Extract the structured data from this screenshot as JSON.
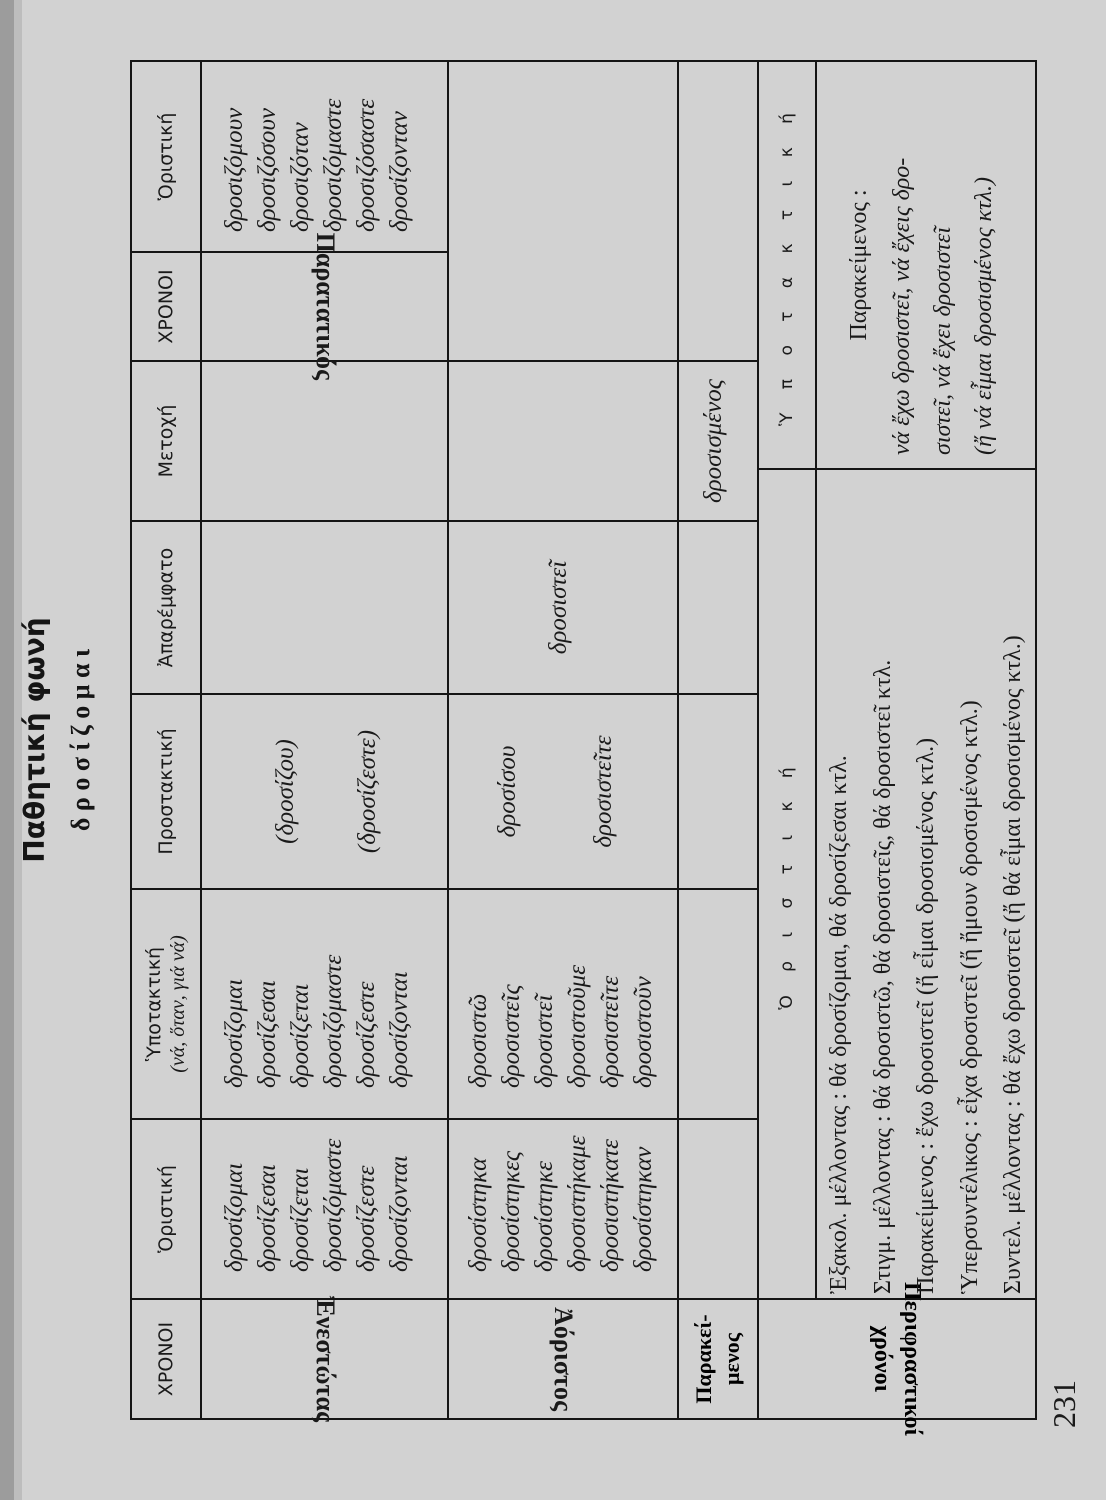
{
  "title": "Παθητική φωνή",
  "verb": "δ ρ ο σ ί ζ ο μ α ι",
  "page_number": "231",
  "headers": {
    "tenses": "ΧΡΟΝΟΙ",
    "indicative": "Ὁριστική",
    "subjunctive": "Ὑποτακτική",
    "subjunctive_note": "(νά, ὅταν, γιά νά)",
    "imperative": "Προστακτική",
    "infinitive": "Ἀπαρέμφατο",
    "participle": "Μετοχή",
    "tenses2": "ΧΡΟΝΟΙ",
    "indicative2": "Ὁριστική"
  },
  "present": {
    "label": "Ἐνεστώτας",
    "indicative": [
      "δροσίζομαι",
      "δροσίζεσαι",
      "δροσίζεται",
      "δροσιζόμαστε",
      "δροσίζεστε",
      "δροσίζονται"
    ],
    "subjunctive": [
      "δροσίζομαι",
      "δροσίζεσαι",
      "δροσίζεται",
      "δροσιζόμαστε",
      "δροσίζεστε",
      "δροσίζονται"
    ],
    "imperative": [
      "(δροσίζου)",
      "(δροσίζεστε)"
    ]
  },
  "imperfect": {
    "label": "Παρατατικός",
    "indicative": [
      "δροσιζόμουν",
      "δροσιζόσουν",
      "δροσιζόταν",
      "δροσιζόμαστε",
      "δροσιζόσαστε",
      "δροσίζονταν"
    ]
  },
  "aorist": {
    "label": "Ἀόριστος",
    "indicative": [
      "δροσίστηκα",
      "δροσίστηκες",
      "δροσίστηκε",
      "δροσιστήκαμε",
      "δροσιστήκατε",
      "δροσίστηκαν"
    ],
    "subjunctive": [
      "δροσιστῶ",
      "δροσιστεῖς",
      "δροσιστεῖ",
      "δροσιστοῦμε",
      "δροσιστεῖτε",
      "δροσιστοῦν"
    ],
    "imperative": [
      "δροσίσου",
      "δροσιστεῖτε"
    ],
    "infinitive": "δροσιστεῖ"
  },
  "perfect": {
    "label_line1": "Παρακεί-",
    "label_line2": "μενος",
    "participle": "δροσισμένος"
  },
  "periphrastic": {
    "label_line1": "Περιφραστικοί",
    "label_line2": "χρόνοι",
    "indicative_header": "Ὁ ρ ι σ τ ι κ ή",
    "subjunctive_header": "Ὑ π ο τ α κ τ ι κ ή",
    "indicative_lines": [
      "Ἐξακολ. μέλλοντας : θά δροσίζομαι, θά δροσίζεσαι κτλ.",
      "Στιγμ. μέλλοντας : θά δροσιστῶ, θά δροσιστεῖς, θά δροσιστεῖ κτλ.",
      "Παρακείμενος : ἔχω δροσιστεῖ (ἤ εἶμαι δροσισμένος κτλ.)",
      "Ὑπερσυντέλικος : εἶχα δροσιστεῖ (ἤ ἤμουν δροσισμένος κτλ.)",
      "Συντελ. μέλλοντας : θά ἔχω δροσιστεῖ (ἤ θά εἶμαι δροσισμένος κτλ.)"
    ],
    "subjunctive_title": "Παρακείμενος :",
    "subjunctive_lines": [
      "νά ἔχω δροσιστεῖ, νά ἔχεις δρο-",
      "σιστεῖ, νά ἔχει δροσιστεῖ",
      "(ἤ νά εἶμαι δροσισμένος κτλ.)"
    ]
  }
}
